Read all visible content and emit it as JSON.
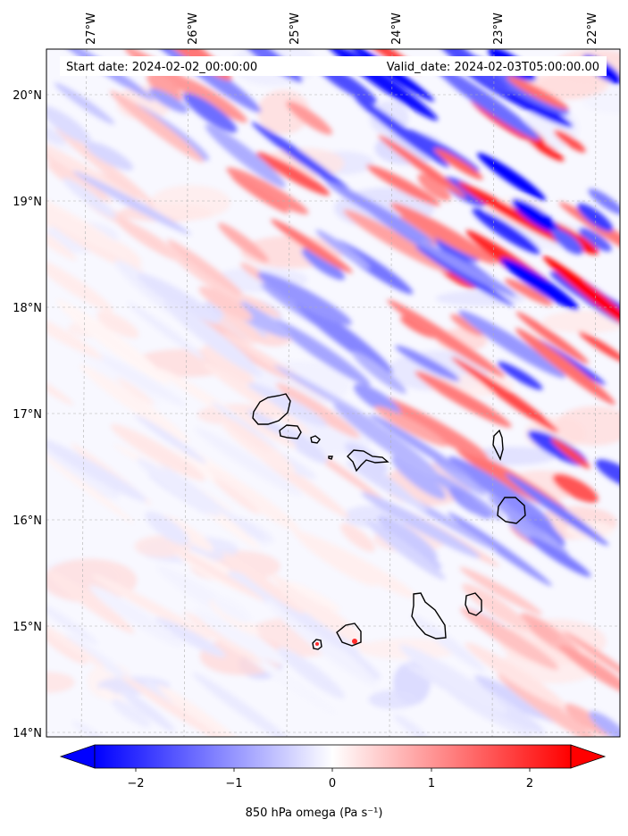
{
  "header": {
    "start_date": "Start date: 2024-02-02_00:00:00",
    "valid_date": "Valid_date: 2024-02-03T05:00:00.00"
  },
  "map": {
    "lon_ticks": [
      "27°W",
      "26°W",
      "25°W",
      "24°W",
      "23°W",
      "22°W"
    ],
    "lat_ticks": [
      "20°N",
      "19°N",
      "18°N",
      "17°N",
      "16°N",
      "15°N",
      "14°N"
    ],
    "islands": [
      "Santo Antão",
      "São Vicente",
      "Santa Luzia",
      "Branco",
      "São Nicolau",
      "Sal",
      "Boa Vista",
      "Brava",
      "Fogo",
      "Santiago",
      "Maio"
    ]
  },
  "colorbar": {
    "ticks": [
      "−2",
      "−1",
      "0",
      "1",
      "2"
    ],
    "min": -2.6,
    "max": 2.6,
    "label": "850 hPa omega (Pa s⁻¹)",
    "color_low": "#0000ff",
    "color_mid": "#ffffff",
    "color_high": "#ff0000"
  },
  "chart_data": {
    "type": "heatmap",
    "title": "",
    "variable": "850 hPa omega",
    "units": "Pa s⁻¹",
    "lon_range": [
      -27.4,
      -21.8
    ],
    "lat_range": [
      13.95,
      20.45
    ],
    "colormap": "bwr",
    "clim": [
      -2.6,
      2.6
    ],
    "extend": "both",
    "grid": true
  }
}
